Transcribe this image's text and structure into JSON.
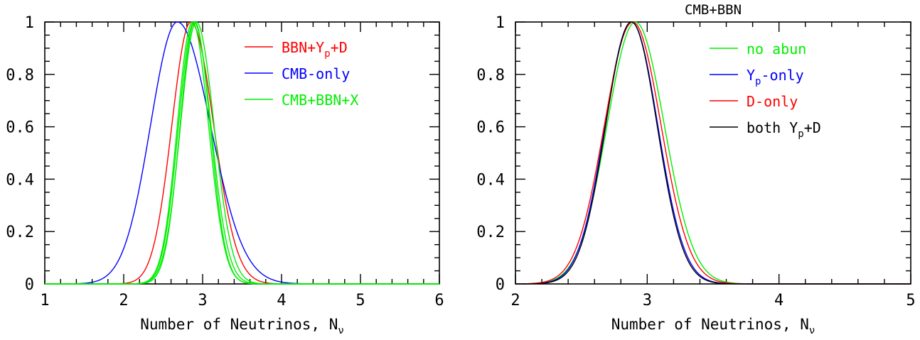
{
  "chart_data": [
    {
      "type": "line",
      "title": "",
      "xlabel": "Number of Neutrinos, N",
      "xlabel_sub": "ν",
      "ylabel": "",
      "xlim": [
        1,
        6
      ],
      "ylim": [
        0,
        1
      ],
      "x_ticks": [
        "1",
        "2",
        "3",
        "4",
        "5",
        "6"
      ],
      "y_ticks": [
        "0",
        "0.2",
        "0.4",
        "0.6",
        "0.8",
        "1"
      ],
      "grid": false,
      "legend_position": "top-right",
      "series": [
        {
          "name_parts": [
            [
              "BBN+Y",
              ""
            ],
            [
              "p",
              "sub"
            ],
            [
              "+D",
              ""
            ]
          ],
          "color": "#ff0000",
          "peak": 2.85,
          "sigma_left": 0.24,
          "sigma_right": 0.29
        },
        {
          "name_parts": [
            [
              "CMB-only",
              ""
            ]
          ],
          "color": "#0000ff",
          "peak": 2.68,
          "sigma_left": 0.34,
          "sigma_right": 0.42
        },
        {
          "name_parts": [
            [
              "CMB+BBN+X",
              ""
            ]
          ],
          "color": "#00ee00",
          "peak": 2.89,
          "sigma_left": 0.195,
          "sigma_right": 0.215
        },
        {
          "name_parts": [],
          "color": "#00ee00",
          "peak": 2.92,
          "sigma_left": 0.2,
          "sigma_right": 0.225
        },
        {
          "name_parts": [],
          "color": "#00ee00",
          "peak": 2.87,
          "sigma_left": 0.19,
          "sigma_right": 0.205
        },
        {
          "name_parts": [],
          "color": "#00ee00",
          "peak": 2.9,
          "sigma_left": 0.185,
          "sigma_right": 0.195
        }
      ]
    },
    {
      "type": "line",
      "title": "CMB+BBN",
      "xlabel": "Number of Neutrinos, N",
      "xlabel_sub": "ν",
      "ylabel": "",
      "xlim": [
        2,
        5
      ],
      "ylim": [
        0,
        1
      ],
      "x_ticks": [
        "2",
        "3",
        "4",
        "5"
      ],
      "y_ticks": [
        "0",
        "0.2",
        "0.4",
        "0.6",
        "0.8",
        "1"
      ],
      "grid": false,
      "legend_position": "top-right",
      "series": [
        {
          "name_parts": [
            [
              "no abun",
              ""
            ]
          ],
          "color": "#00ee00",
          "peak": 2.91,
          "sigma_left": 0.215,
          "sigma_right": 0.22
        },
        {
          "name_parts": [
            [
              "Y",
              ""
            ],
            [
              "p",
              "sub"
            ],
            [
              "-only",
              ""
            ]
          ],
          "color": "#0000ff",
          "peak": 2.88,
          "sigma_left": 0.2,
          "sigma_right": 0.2
        },
        {
          "name_parts": [
            [
              "D-only",
              ""
            ]
          ],
          "color": "#ff0000",
          "peak": 2.89,
          "sigma_left": 0.215,
          "sigma_right": 0.215
        },
        {
          "name_parts": [
            [
              "both Y",
              ""
            ],
            [
              "p",
              "sub"
            ],
            [
              "+D",
              ""
            ]
          ],
          "color": "#000000",
          "peak": 2.88,
          "sigma_left": 0.195,
          "sigma_right": 0.195
        }
      ]
    }
  ]
}
